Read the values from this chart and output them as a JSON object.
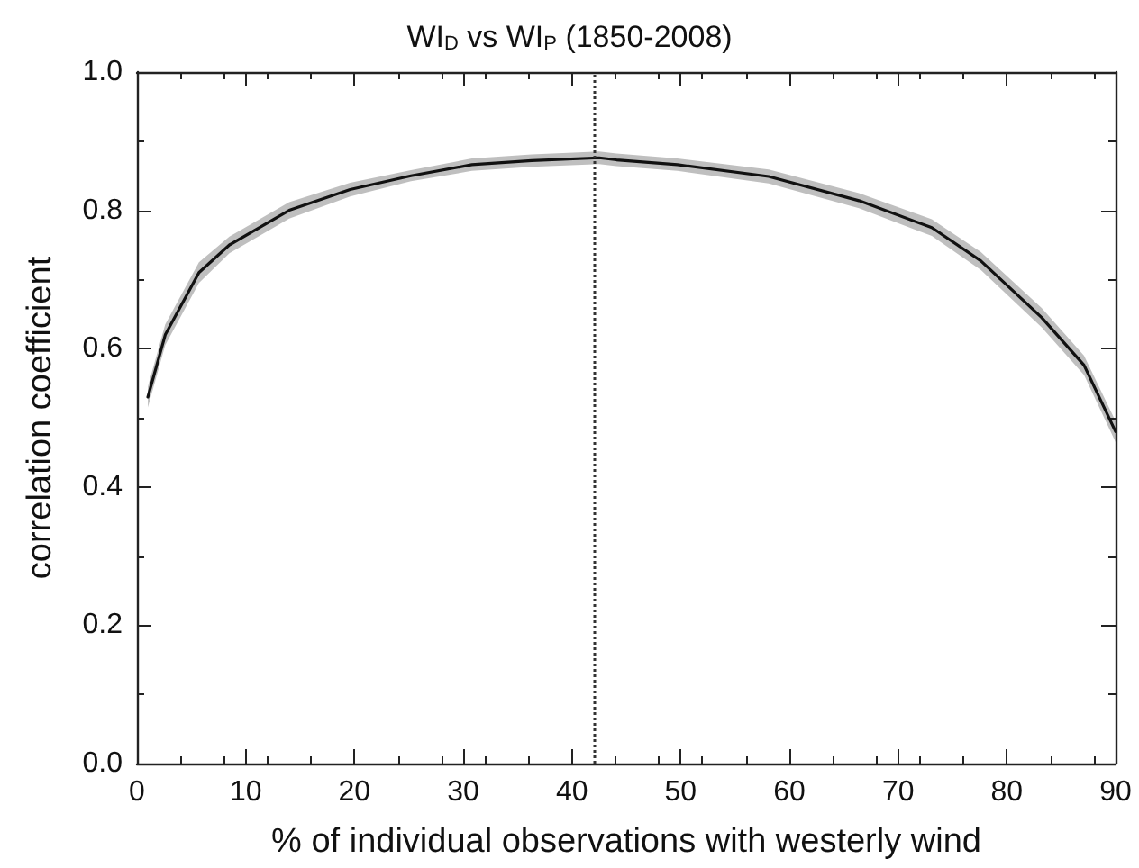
{
  "chart_data": {
    "type": "line",
    "title": "WI$_{D}$ vs WI$_{P}$ (1850-2008)",
    "xlabel": "% of individual observations with westerly wind",
    "ylabel": "correlation coefficient",
    "xlim": [
      0,
      90
    ],
    "xticks": [
      0,
      10,
      20,
      30,
      40,
      50,
      60,
      70,
      80,
      90
    ],
    "ylim": [
      0,
      1
    ],
    "yticks": [
      {
        "value": 0,
        "label": "0.0"
      },
      {
        "value": 0.2,
        "label": "0.2"
      },
      {
        "value": 0.4,
        "label": "0.4"
      },
      {
        "value": 0.6,
        "label": "0.6"
      },
      {
        "value": 0.8,
        "label": "0.8"
      },
      {
        "value": 1,
        "label": "1.0"
      }
    ],
    "grid": false,
    "marker": "none",
    "line_style": "solid",
    "ref_lines": [
      {
        "axis": "x",
        "value": 42,
        "color": "#333333",
        "line_style": "dotted"
      }
    ],
    "series": [
      {
        "color": "#111111",
        "x": [
          1,
          2.6,
          5.7,
          8.5,
          14,
          19.6,
          25.2,
          30.8,
          36.3,
          42.5,
          44.1,
          49.7,
          58.1,
          66.4,
          73.1,
          77.6,
          83.2,
          87.1,
          90
        ],
        "values": [
          0.53,
          0.62,
          0.71,
          0.75,
          0.8,
          0.83,
          0.85,
          0.866,
          0.872,
          0.876,
          0.873,
          0.866,
          0.849,
          0.814,
          0.775,
          0.727,
          0.645,
          0.576,
          0.48
        ],
        "lower": [
          0.515,
          0.605,
          0.695,
          0.738,
          0.788,
          0.82,
          0.842,
          0.857,
          0.863,
          0.867,
          0.864,
          0.857,
          0.839,
          0.803,
          0.763,
          0.714,
          0.631,
          0.562,
          0.465
        ],
        "upper": [
          0.545,
          0.635,
          0.725,
          0.762,
          0.812,
          0.84,
          0.858,
          0.875,
          0.881,
          0.885,
          0.882,
          0.875,
          0.859,
          0.825,
          0.787,
          0.74,
          0.659,
          0.59,
          0.495
        ]
      }
    ]
  }
}
